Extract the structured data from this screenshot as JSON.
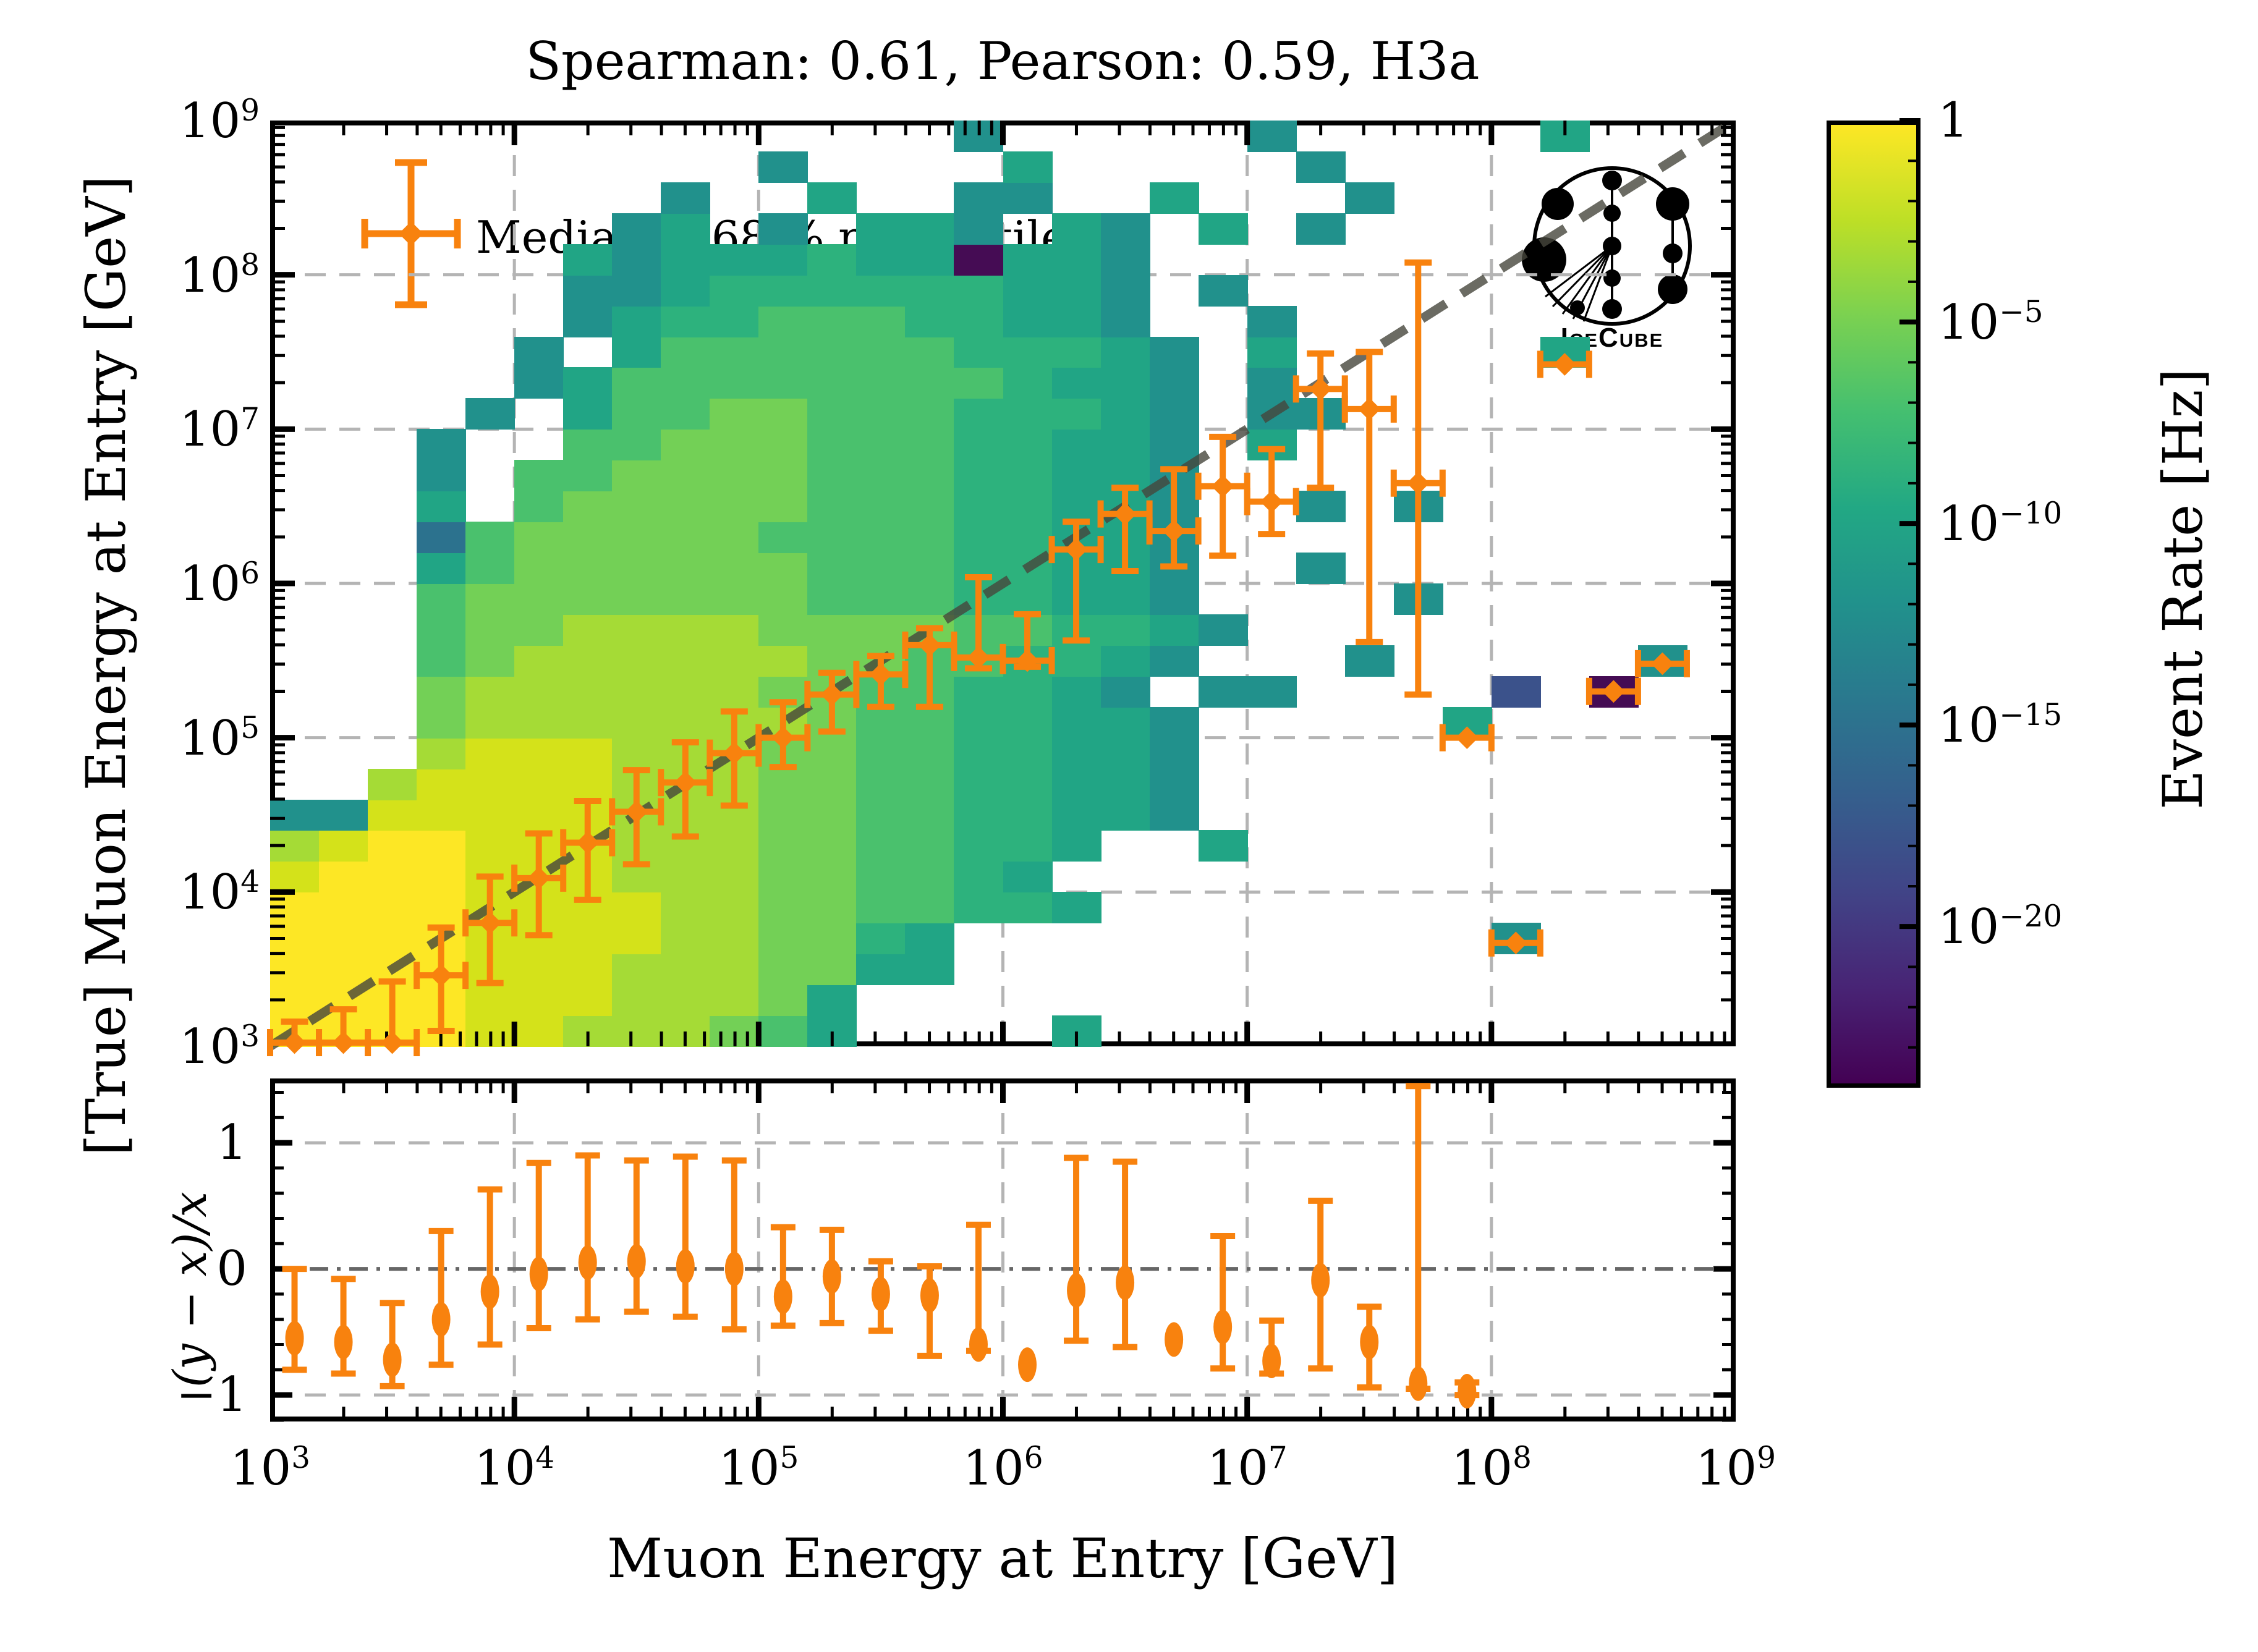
{
  "title": "Spearman: 0.61, Pearson: 0.59, H3a",
  "legend": {
    "label": "Median ± 68 % percentile"
  },
  "logo": {
    "text": "IceCube"
  },
  "axes": {
    "xlabel": "Muon Energy at Entry [GeV]",
    "ylabel_main": "[True] Muon Energy at Entry [GeV]",
    "ylabel_residual": "(y − x)/x"
  },
  "colorbar": {
    "label": "Event Rate [Hz]",
    "tick_exponents": [
      0,
      -5,
      -10,
      -15,
      -20
    ],
    "tick_labels": [
      "1",
      "10⁻⁵",
      "10⁻¹⁰",
      "10⁻¹⁵",
      "10⁻²⁰"
    ],
    "vmax_exp": 0,
    "vmin_exp": -24
  },
  "chart_data": [
    {
      "type": "heatmap",
      "title": "Spearman: 0.61, Pearson: 0.59, H3a",
      "xlabel": "Muon Energy at Entry [GeV]",
      "ylabel": "[True] Muon Energy at Entry [GeV]",
      "x_log_range": [
        3,
        9
      ],
      "y_log_range": [
        3,
        9
      ],
      "x_tick_exponents": [
        3,
        4,
        5,
        6,
        7,
        8,
        9
      ],
      "y_tick_exponents": [
        3,
        4,
        5,
        6,
        7,
        8,
        9
      ],
      "bins_per_decade_x": 5,
      "bins_per_decade_y": 5,
      "grid": true,
      "colorbar_label": "Event Rate [Hz]",
      "palette_log10_rate": {
        "a": -1,
        "b": -3,
        "c": -4.5,
        "d": -6,
        "e": -7.5,
        "f": -9,
        "g": -10.5,
        "h": -12,
        "i": -15,
        "j": -17,
        "k": -20,
        "l": -22.5
      },
      "palette_colors": {
        "a": "#fde725",
        "b": "#d4e21a",
        "c": "#a5db36",
        "d": "#73d056",
        "e": "#4ac16d",
        "f": "#2db27d",
        "g": "#21a585",
        "h": "#21918c",
        "i": "#2c728e",
        "j": "#3b528b",
        "k": "#472d7b",
        "l": "#450c54"
      },
      "rows_bottom_to_top": [
        "aaaabbcccdeg....g.............",
        "aaaabbbcccdg..................",
        "aaaabbbcccddgg................",
        "aaaabbbbccddfg...........h....",
        "aaaabbbbccddeeffg.............",
        "baaabbbcccddeefg..............",
        "cbaabbbcccddeeffg..g..........",
        "hhbbbbbcccddeeffggh...........",
        "..cbbbbcccddeeffggh...........",
        "...cbbbcccddeeffggh...........",
        "...dcccccccdeeffggh.....g.....",
        "...dccccccddeeffgh.hh....j.l..",
        "...edccccccddeeffgh...h.....h.",
        "...eddccccddddeeffgh..........",
        "...edddddddeeeffggh....h......",
        "...geddddddeeeffggh..h........",
        "...iedddddeeeeffggh...........",
        "...g.edddddeeeffggh..h.h......",
        "...h.eeddddeeeffggh...........",
        "...h..eedddeeeffggh.g.........",
        "....h.geeddeeefffgh.hh........",
        ".....hgeeeeeeeefggh.h.........",
        ".....h.geeeeeefffgh.g.....g...",
        "......hgffeeeffggh..h.........",
        "......hhgffffffggh.h..........",
        "......ghgggfgglggh............",
        ".......hg.h.ggh.gh.g.h........",
        "........h..g..hh..g...h.......",
        "..........h....g.....h........",
        "..............h.....h.....g..."
      ],
      "diagonal_line": {
        "from_log": [
          3,
          3
        ],
        "to_log": [
          9,
          9
        ],
        "style": "dashed"
      }
    },
    {
      "type": "scatter",
      "name": "Median ± 68 % percentile",
      "marker_color": "#f8820e",
      "points_log10": [
        {
          "lx": 3.1,
          "ly": 3.02,
          "lo": 3.0,
          "hi": 3.16
        },
        {
          "lx": 3.3,
          "ly": 3.01,
          "lo": 3.0,
          "hi": 3.24
        },
        {
          "lx": 3.5,
          "ly": 3.01,
          "lo": 3.0,
          "hi": 3.42
        },
        {
          "lx": 3.7,
          "ly": 3.46,
          "lo": 3.1,
          "hi": 3.77
        },
        {
          "lx": 3.9,
          "ly": 3.8,
          "lo": 3.41,
          "hi": 4.1
        },
        {
          "lx": 4.1,
          "ly": 4.09,
          "lo": 3.72,
          "hi": 4.38
        },
        {
          "lx": 4.3,
          "ly": 4.32,
          "lo": 3.95,
          "hi": 4.59
        },
        {
          "lx": 4.5,
          "ly": 4.52,
          "lo": 4.18,
          "hi": 4.79
        },
        {
          "lx": 4.7,
          "ly": 4.71,
          "lo": 4.36,
          "hi": 4.97
        },
        {
          "lx": 4.9,
          "ly": 4.9,
          "lo": 4.56,
          "hi": 5.17
        },
        {
          "lx": 5.1,
          "ly": 5.0,
          "lo": 4.81,
          "hi": 5.23
        },
        {
          "lx": 5.3,
          "ly": 5.28,
          "lo": 5.04,
          "hi": 5.42
        },
        {
          "lx": 5.5,
          "ly": 5.41,
          "lo": 5.2,
          "hi": 5.53
        },
        {
          "lx": 5.7,
          "ly": 5.6,
          "lo": 5.2,
          "hi": 5.71
        },
        {
          "lx": 5.9,
          "ly": 5.52,
          "lo": 5.45,
          "hi": 6.04
        },
        {
          "lx": 6.1,
          "ly": 5.5,
          "lo": 5.46,
          "hi": 5.8
        },
        {
          "lx": 6.3,
          "ly": 6.22,
          "lo": 5.63,
          "hi": 6.4
        },
        {
          "lx": 6.5,
          "ly": 6.45,
          "lo": 6.08,
          "hi": 6.62
        },
        {
          "lx": 6.7,
          "ly": 6.34,
          "lo": 6.11,
          "hi": 6.74
        },
        {
          "lx": 6.9,
          "ly": 6.63,
          "lo": 6.18,
          "hi": 6.95
        },
        {
          "lx": 7.1,
          "ly": 6.53,
          "lo": 6.32,
          "hi": 6.87
        },
        {
          "lx": 7.3,
          "ly": 7.26,
          "lo": 6.62,
          "hi": 7.49
        },
        {
          "lx": 7.5,
          "ly": 7.13,
          "lo": 5.62,
          "hi": 7.5
        },
        {
          "lx": 7.7,
          "ly": 6.65,
          "lo": 5.28,
          "hi": 8.08
        },
        {
          "lx": 7.9,
          "ly": 5.0,
          "lo": 5.0,
          "hi": 5.0
        },
        {
          "lx": 8.1,
          "ly": 3.67,
          "lo": 3.67,
          "hi": 3.67
        },
        {
          "lx": 8.3,
          "ly": 7.42,
          "lo": 7.42,
          "hi": 7.42
        },
        {
          "lx": 8.5,
          "ly": 5.3,
          "lo": 5.3,
          "hi": 5.3
        },
        {
          "lx": 8.7,
          "ly": 5.48,
          "lo": 5.48,
          "hi": 5.48
        }
      ]
    },
    {
      "type": "scatter",
      "name": "residuals (y − x)/x",
      "ylabel": "(y − x)/x",
      "ylim": [
        -1.21,
        1.51
      ],
      "y_ticks": [
        1,
        0,
        -1
      ],
      "y_tick_labels": [
        "1",
        "0",
        "−1"
      ],
      "marker_color": "#f8820e",
      "points": [
        {
          "lx": 3.1,
          "r": -0.55,
          "lo": -0.8,
          "hi": 0.0
        },
        {
          "lx": 3.3,
          "r": -0.58,
          "lo": -0.83,
          "hi": -0.08
        },
        {
          "lx": 3.5,
          "r": -0.72,
          "lo": -0.93,
          "hi": -0.27
        },
        {
          "lx": 3.7,
          "r": -0.4,
          "lo": -0.76,
          "hi": 0.3
        },
        {
          "lx": 3.9,
          "r": -0.18,
          "lo": -0.6,
          "hi": 0.63
        },
        {
          "lx": 4.1,
          "r": -0.04,
          "lo": -0.47,
          "hi": 0.84
        },
        {
          "lx": 4.3,
          "r": 0.05,
          "lo": -0.4,
          "hi": 0.9
        },
        {
          "lx": 4.5,
          "r": 0.06,
          "lo": -0.34,
          "hi": 0.86
        },
        {
          "lx": 4.7,
          "r": 0.02,
          "lo": -0.38,
          "hi": 0.89
        },
        {
          "lx": 4.9,
          "r": 0.0,
          "lo": -0.48,
          "hi": 0.86
        },
        {
          "lx": 5.1,
          "r": -0.22,
          "lo": -0.45,
          "hi": 0.33
        },
        {
          "lx": 5.3,
          "r": -0.06,
          "lo": -0.43,
          "hi": 0.31
        },
        {
          "lx": 5.5,
          "r": -0.2,
          "lo": -0.49,
          "hi": 0.06
        },
        {
          "lx": 5.7,
          "r": -0.21,
          "lo": -0.69,
          "hi": 0.02
        },
        {
          "lx": 5.9,
          "r": -0.6,
          "lo": -0.65,
          "hi": 0.35
        },
        {
          "lx": 6.1,
          "r": -0.76,
          "lo": null,
          "hi": null
        },
        {
          "lx": 6.3,
          "r": -0.17,
          "lo": -0.57,
          "hi": 0.88
        },
        {
          "lx": 6.5,
          "r": -0.11,
          "lo": -0.62,
          "hi": 0.85
        },
        {
          "lx": 6.7,
          "r": -0.56,
          "lo": null,
          "hi": null
        },
        {
          "lx": 6.9,
          "r": -0.46,
          "lo": -0.79,
          "hi": 0.26
        },
        {
          "lx": 7.1,
          "r": -0.73,
          "lo": -0.83,
          "hi": -0.41
        },
        {
          "lx": 7.3,
          "r": -0.09,
          "lo": -0.79,
          "hi": 0.54
        },
        {
          "lx": 7.5,
          "r": -0.58,
          "lo": -0.94,
          "hi": -0.3
        },
        {
          "lx": 7.7,
          "r": -0.91,
          "lo": -0.95,
          "hi": 1.45
        },
        {
          "lx": 7.9,
          "r": -0.97,
          "lo": -1.0,
          "hi": -0.9
        }
      ]
    }
  ]
}
